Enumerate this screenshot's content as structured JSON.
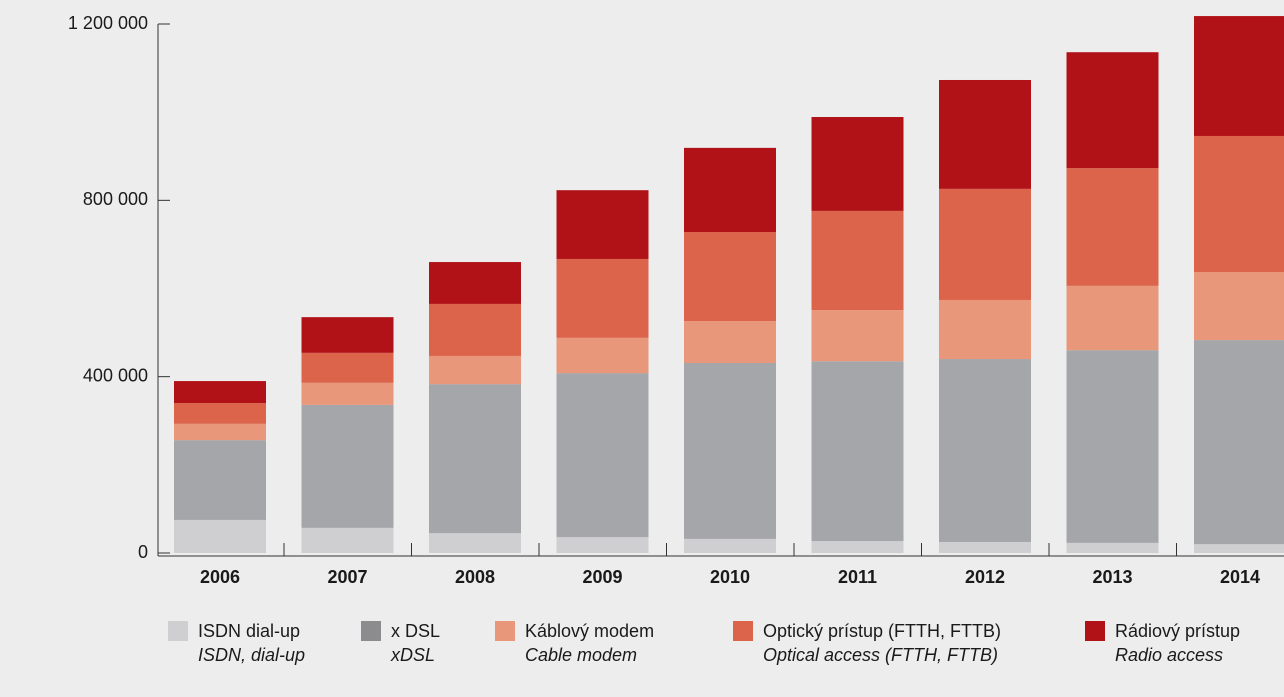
{
  "chart_data": {
    "type": "stacked_bar",
    "categories": [
      "2006",
      "2007",
      "2008",
      "2009",
      "2010",
      "2011",
      "2012",
      "2013",
      "2014"
    ],
    "series": [
      {
        "name": "ISDN dial-up",
        "name_en": "ISDN, dial-up",
        "color": "#cfcfd1",
        "values": [
          75000,
          57000,
          45000,
          36000,
          32000,
          27000,
          25000,
          23000,
          20000
        ]
      },
      {
        "name": "x DSL",
        "name_en": "xDSL",
        "color": "#a5a6a9",
        "legend_color": "#8c8c8e",
        "values": [
          181000,
          279000,
          338000,
          372000,
          399000,
          408000,
          415000,
          437000,
          463000
        ]
      },
      {
        "name": "Káblový modem",
        "name_en": "Cable modem",
        "color": "#e8977a",
        "values": [
          37000,
          50000,
          64000,
          80000,
          95000,
          116000,
          134000,
          146000,
          154000
        ]
      },
      {
        "name": "Optický prístup (FTTH, FTTB)",
        "name_en": "Optical access (FTTH, FTTB)",
        "color": "#dc644b",
        "values": [
          47000,
          68000,
          118000,
          179000,
          202000,
          225000,
          252000,
          267000,
          309000
        ]
      },
      {
        "name": "Rádiový prístup",
        "name_en": "Radio access",
        "color": "#b01217",
        "values": [
          50000,
          81000,
          95000,
          156000,
          191000,
          213000,
          247000,
          263000,
          272000
        ]
      }
    ],
    "ylim": [
      0,
      1200000
    ],
    "yticks": [
      0,
      {
        "value": 400000,
        "label": "400 000"
      },
      {
        "value": 800000,
        "label": "800 000"
      },
      {
        "value": 1200000,
        "label": "1 200 000"
      }
    ]
  }
}
